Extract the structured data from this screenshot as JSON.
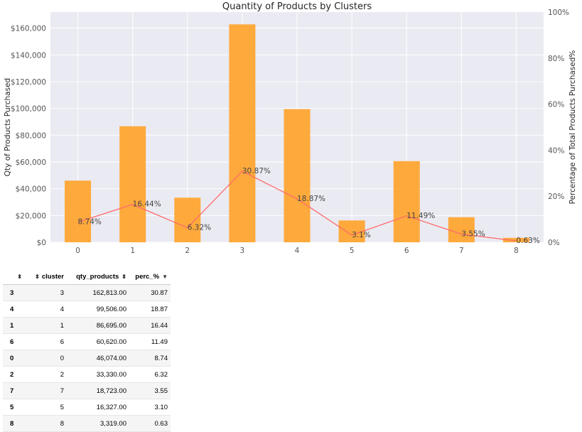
{
  "chart_data": {
    "type": "bar",
    "title": "Quantity of Products by Clusters",
    "xlabel": "",
    "ylabel": "Qty of Products Purchased",
    "y2label": "Percentage of Total Products Purchased%",
    "categories": [
      "0",
      "1",
      "2",
      "3",
      "4",
      "5",
      "6",
      "7",
      "8"
    ],
    "series": [
      {
        "type": "bar",
        "axis": "left",
        "values": [
          46074,
          86695,
          33330,
          162813,
          99506,
          16327,
          60620,
          18723,
          3319
        ]
      },
      {
        "type": "line",
        "axis": "right",
        "values": [
          8.74,
          16.44,
          6.32,
          30.87,
          18.87,
          3.1,
          11.49,
          3.55,
          0.63
        ],
        "labels": [
          "8.74%",
          "16.44%",
          "6.32%",
          "30.87%",
          "18.87%",
          "3.1%",
          "11.49%",
          "3.55%",
          "0.63%"
        ]
      }
    ],
    "ylim": [
      0,
      172000
    ],
    "y2lim": [
      0,
      100
    ],
    "yticks": [
      0,
      20000,
      40000,
      60000,
      80000,
      100000,
      120000,
      140000,
      160000
    ],
    "yticklabels": [
      "$0",
      "$20,000",
      "$40,000",
      "$60,000",
      "$80,000",
      "$100,000",
      "$120,000",
      "$140,000",
      "$160,000"
    ],
    "y2ticks": [
      0,
      20,
      40,
      60,
      80,
      100
    ],
    "y2ticklabels": [
      "0%",
      "20%",
      "40%",
      "60%",
      "80%",
      "100%"
    ],
    "grid": true,
    "colors": {
      "bar": "#ffa532",
      "line": "#ff6b6b",
      "background": "#eaeaf2",
      "grid": "#ffffff"
    }
  },
  "table": {
    "columns": [
      "cluster",
      "qty_products",
      "perc_%"
    ],
    "rows": [
      {
        "index": "3",
        "cluster": "3",
        "qty_products": "162,813.00",
        "perc": "30.87"
      },
      {
        "index": "4",
        "cluster": "4",
        "qty_products": "99,506.00",
        "perc": "18.87"
      },
      {
        "index": "1",
        "cluster": "1",
        "qty_products": "86,695.00",
        "perc": "16.44"
      },
      {
        "index": "6",
        "cluster": "6",
        "qty_products": "60,620.00",
        "perc": "11.49"
      },
      {
        "index": "0",
        "cluster": "0",
        "qty_products": "46,074.00",
        "perc": "8.74"
      },
      {
        "index": "2",
        "cluster": "2",
        "qty_products": "33,330.00",
        "perc": "6.32"
      },
      {
        "index": "7",
        "cluster": "7",
        "qty_products": "18,723.00",
        "perc": "3.55"
      },
      {
        "index": "5",
        "cluster": "5",
        "qty_products": "16,327.00",
        "perc": "3.10"
      },
      {
        "index": "8",
        "cluster": "8",
        "qty_products": "3,319.00",
        "perc": "0.63"
      }
    ]
  }
}
